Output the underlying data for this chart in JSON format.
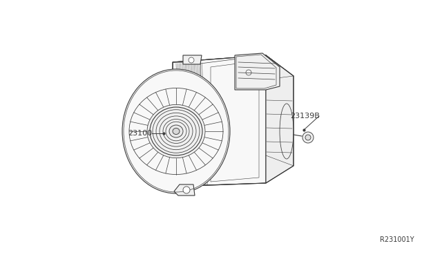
{
  "background_color": "#ffffff",
  "line_color": "#3a3a3a",
  "label_color": "#3a3a3a",
  "part_label_1": "23100",
  "part_label_2": "23139B",
  "diagram_code": "R231001Y",
  "figsize": [
    6.4,
    3.72
  ],
  "dpi": 100
}
